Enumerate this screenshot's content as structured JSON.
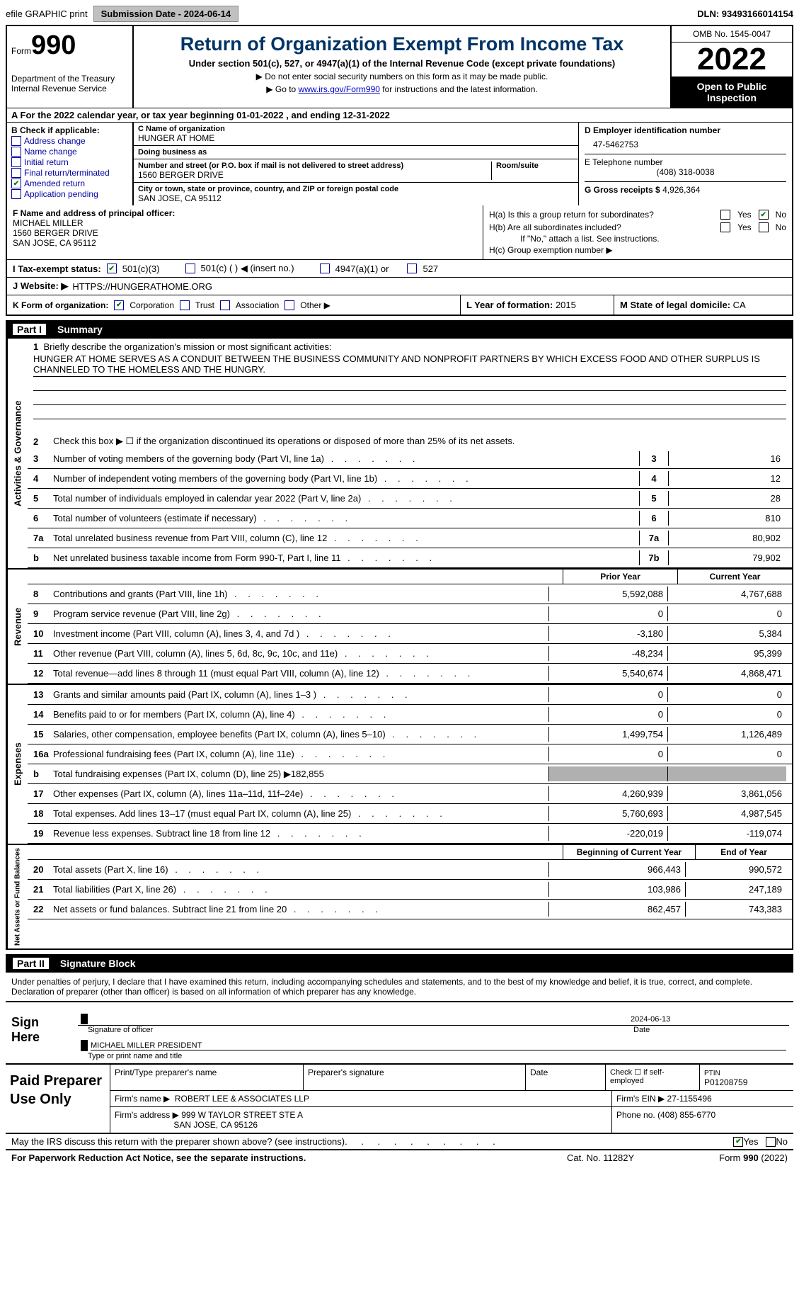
{
  "topbar": {
    "efile": "efile GRAPHIC print",
    "submission_label": "Submission Date - 2024-06-14",
    "dln_label": "DLN: 93493166014154"
  },
  "header": {
    "form_prefix": "Form",
    "form_number": "990",
    "dept": "Department of the Treasury\nInternal Revenue Service",
    "title": "Return of Organization Exempt From Income Tax",
    "subtitle": "Under section 501(c), 527, or 4947(a)(1) of the Internal Revenue Code (except private foundations)",
    "note1": "▶ Do not enter social security numbers on this form as it may be made public.",
    "note2_pre": "▶ Go to ",
    "note2_link": "www.irs.gov/Form990",
    "note2_post": " for instructions and the latest information.",
    "omb": "OMB No. 1545-0047",
    "year": "2022",
    "inspect": "Open to Public Inspection"
  },
  "row_a": "A For the 2022 calendar year, or tax year beginning 01-01-2022   , and ending 12-31-2022",
  "colB": {
    "label": "B Check if applicable:",
    "items": [
      "Address change",
      "Name change",
      "Initial return",
      "Final return/terminated",
      "Amended return",
      "Application pending"
    ],
    "checked_idx": 4
  },
  "colC": {
    "name_label": "C Name of organization",
    "name": "HUNGER AT HOME",
    "dba_label": "Doing business as",
    "dba": "",
    "addr_label": "Number and street (or P.O. box if mail is not delivered to street address)",
    "room_label": "Room/suite",
    "addr": "1560 BERGER DRIVE",
    "city_label": "City or town, state or province, country, and ZIP or foreign postal code",
    "city": "SAN JOSE, CA  95112"
  },
  "colD": {
    "ein_label": "D Employer identification number",
    "ein": "47-5462753",
    "phone_label": "E Telephone number",
    "phone": "(408) 318-0038",
    "gross_label": "G Gross receipts $",
    "gross": "4,926,364"
  },
  "rowF": {
    "label": "F  Name and address of principal officer:",
    "name": "MICHAEL MILLER",
    "addr1": "1560 BERGER DRIVE",
    "addr2": "SAN JOSE, CA  95112"
  },
  "rowH": {
    "a": "H(a)  Is this a group return for subordinates?",
    "b": "H(b)  Are all subordinates included?",
    "b_note": "If \"No,\" attach a list. See instructions.",
    "c": "H(c)  Group exemption number ▶"
  },
  "rowI": {
    "label": "I  Tax-exempt status:",
    "opts": [
      "501(c)(3)",
      "501(c) (  ) ◀ (insert no.)",
      "4947(a)(1) or",
      "527"
    ]
  },
  "rowJ": {
    "label": "J  Website: ▶",
    "url": "HTTPS://HUNGERATHOME.ORG"
  },
  "rowK": {
    "label": "K Form of organization:",
    "opts": [
      "Corporation",
      "Trust",
      "Association",
      "Other ▶"
    ]
  },
  "rowL": {
    "label": "L Year of formation: ",
    "val": "2015"
  },
  "rowM": {
    "label": "M State of legal domicile: ",
    "val": "CA"
  },
  "part1": {
    "num": "Part I",
    "title": "Summary"
  },
  "mission": {
    "label": "1  Briefly describe the organization's mission or most significant activities:",
    "text": "HUNGER AT HOME SERVES AS A CONDUIT BETWEEN THE BUSINESS COMMUNITY AND NONPROFIT PARTNERS BY WHICH EXCESS FOOD AND OTHER SURPLUS IS CHANNELED TO THE HOMELESS AND THE HUNGRY."
  },
  "line2": "Check this box ▶ ☐  if the organization discontinued its operations or disposed of more than 25% of its net assets.",
  "gov_lines": [
    {
      "n": "3",
      "d": "Number of voting members of the governing body (Part VI, line 1a)",
      "box": "3",
      "v": "16"
    },
    {
      "n": "4",
      "d": "Number of independent voting members of the governing body (Part VI, line 1b)",
      "box": "4",
      "v": "12"
    },
    {
      "n": "5",
      "d": "Total number of individuals employed in calendar year 2022 (Part V, line 2a)",
      "box": "5",
      "v": "28"
    },
    {
      "n": "6",
      "d": "Total number of volunteers (estimate if necessary)",
      "box": "6",
      "v": "810"
    },
    {
      "n": "7a",
      "d": "Total unrelated business revenue from Part VIII, column (C), line 12",
      "box": "7a",
      "v": "80,902"
    },
    {
      "n": "b",
      "d": "Net unrelated business taxable income from Form 990-T, Part I, line 11",
      "box": "7b",
      "v": "79,902"
    }
  ],
  "hdr_prior": "Prior Year",
  "hdr_curr": "Current Year",
  "revenue": [
    {
      "n": "8",
      "d": "Contributions and grants (Part VIII, line 1h)",
      "p": "5,592,088",
      "c": "4,767,688"
    },
    {
      "n": "9",
      "d": "Program service revenue (Part VIII, line 2g)",
      "p": "0",
      "c": "0"
    },
    {
      "n": "10",
      "d": "Investment income (Part VIII, column (A), lines 3, 4, and 7d )",
      "p": "-3,180",
      "c": "5,384"
    },
    {
      "n": "11",
      "d": "Other revenue (Part VIII, column (A), lines 5, 6d, 8c, 9c, 10c, and 11e)",
      "p": "-48,234",
      "c": "95,399"
    },
    {
      "n": "12",
      "d": "Total revenue—add lines 8 through 11 (must equal Part VIII, column (A), line 12)",
      "p": "5,540,674",
      "c": "4,868,471"
    }
  ],
  "expenses": [
    {
      "n": "13",
      "d": "Grants and similar amounts paid (Part IX, column (A), lines 1–3 )",
      "p": "0",
      "c": "0"
    },
    {
      "n": "14",
      "d": "Benefits paid to or for members (Part IX, column (A), line 4)",
      "p": "0",
      "c": "0"
    },
    {
      "n": "15",
      "d": "Salaries, other compensation, employee benefits (Part IX, column (A), lines 5–10)",
      "p": "1,499,754",
      "c": "1,126,489"
    },
    {
      "n": "16a",
      "d": "Professional fundraising fees (Part IX, column (A), line 11e)",
      "p": "0",
      "c": "0"
    },
    {
      "n": "b",
      "d": "Total fundraising expenses (Part IX, column (D), line 25)  ▶182,855",
      "shade": true
    },
    {
      "n": "17",
      "d": "Other expenses (Part IX, column (A), lines 11a–11d, 11f–24e)",
      "p": "4,260,939",
      "c": "3,861,056"
    },
    {
      "n": "18",
      "d": "Total expenses. Add lines 13–17 (must equal Part IX, column (A), line 25)",
      "p": "5,760,693",
      "c": "4,987,545"
    },
    {
      "n": "19",
      "d": "Revenue less expenses. Subtract line 18 from line 12",
      "p": "-220,019",
      "c": "-119,074"
    }
  ],
  "hdr_boy": "Beginning of Current Year",
  "hdr_eoy": "End of Year",
  "netassets": [
    {
      "n": "20",
      "d": "Total assets (Part X, line 16)",
      "p": "966,443",
      "c": "990,572"
    },
    {
      "n": "21",
      "d": "Total liabilities (Part X, line 26)",
      "p": "103,986",
      "c": "247,189"
    },
    {
      "n": "22",
      "d": "Net assets or fund balances. Subtract line 21 from line 20",
      "p": "862,457",
      "c": "743,383"
    }
  ],
  "part2": {
    "num": "Part II",
    "title": "Signature Block"
  },
  "sig": {
    "declaration": "Under penalties of perjury, I declare that I have examined this return, including accompanying schedules and statements, and to the best of my knowledge and belief, it is true, correct, and complete. Declaration of preparer (other than officer) is based on all information of which preparer has any knowledge.",
    "sign_here": "Sign Here",
    "sig_officer": "Signature of officer",
    "date": "2024-06-13",
    "date_lbl": "Date",
    "name": "MICHAEL MILLER  PRESIDENT",
    "name_lbl": "Type or print name and title"
  },
  "paid": {
    "title": "Paid Preparer Use Only",
    "prep_name_lbl": "Print/Type preparer's name",
    "prep_sig_lbl": "Preparer's signature",
    "date_lbl": "Date",
    "self_lbl": "Check ☐ if self-employed",
    "ptin_lbl": "PTIN",
    "ptin": "P01208759",
    "firm_name_lbl": "Firm's name  ▶",
    "firm_name": "ROBERT LEE & ASSOCIATES LLP",
    "firm_ein_lbl": "Firm's EIN ▶",
    "firm_ein": "27-1155496",
    "firm_addr_lbl": "Firm's address ▶",
    "firm_addr": "999 W TAYLOR STREET STE A",
    "firm_addr2": "SAN JOSE, CA  95126",
    "phone_lbl": "Phone no.",
    "phone": "(408) 855-6770"
  },
  "footer": {
    "discuss": "May the IRS discuss this return with the preparer shown above? (see instructions)",
    "paperwork": "For Paperwork Reduction Act Notice, see the separate instructions.",
    "cat": "Cat. No. 11282Y",
    "form": "Form 990 (2022)"
  }
}
